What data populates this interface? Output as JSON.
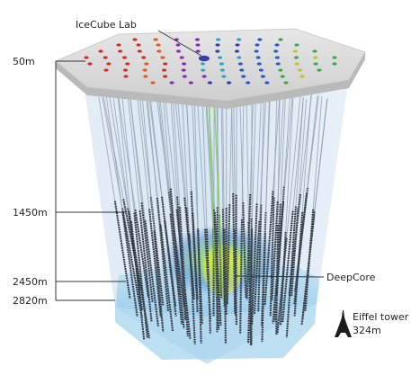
{
  "labels": {
    "lab": "IceCube Lab",
    "deepcore": "DeepCore",
    "tower_name": "Eiffel tower",
    "tower_height": "324m"
  },
  "depths": [
    {
      "label": "50m"
    },
    {
      "label": "1450m"
    },
    {
      "label": "2450m"
    },
    {
      "label": "2820m"
    }
  ],
  "dot_colors": [
    "#d22b2b",
    "#e35a1f",
    "#8a2bb5",
    "#3a3aa8",
    "#2a58c8",
    "#2fa3c8",
    "#3aa84a",
    "#c2c22a"
  ],
  "colors": {
    "string": "#2a2f3a",
    "ice_volume": "#cfe2f2",
    "bedrock": "#9fd0ec",
    "surface": "#d9d9d9",
    "deepcore_core": "#d8e63a"
  }
}
